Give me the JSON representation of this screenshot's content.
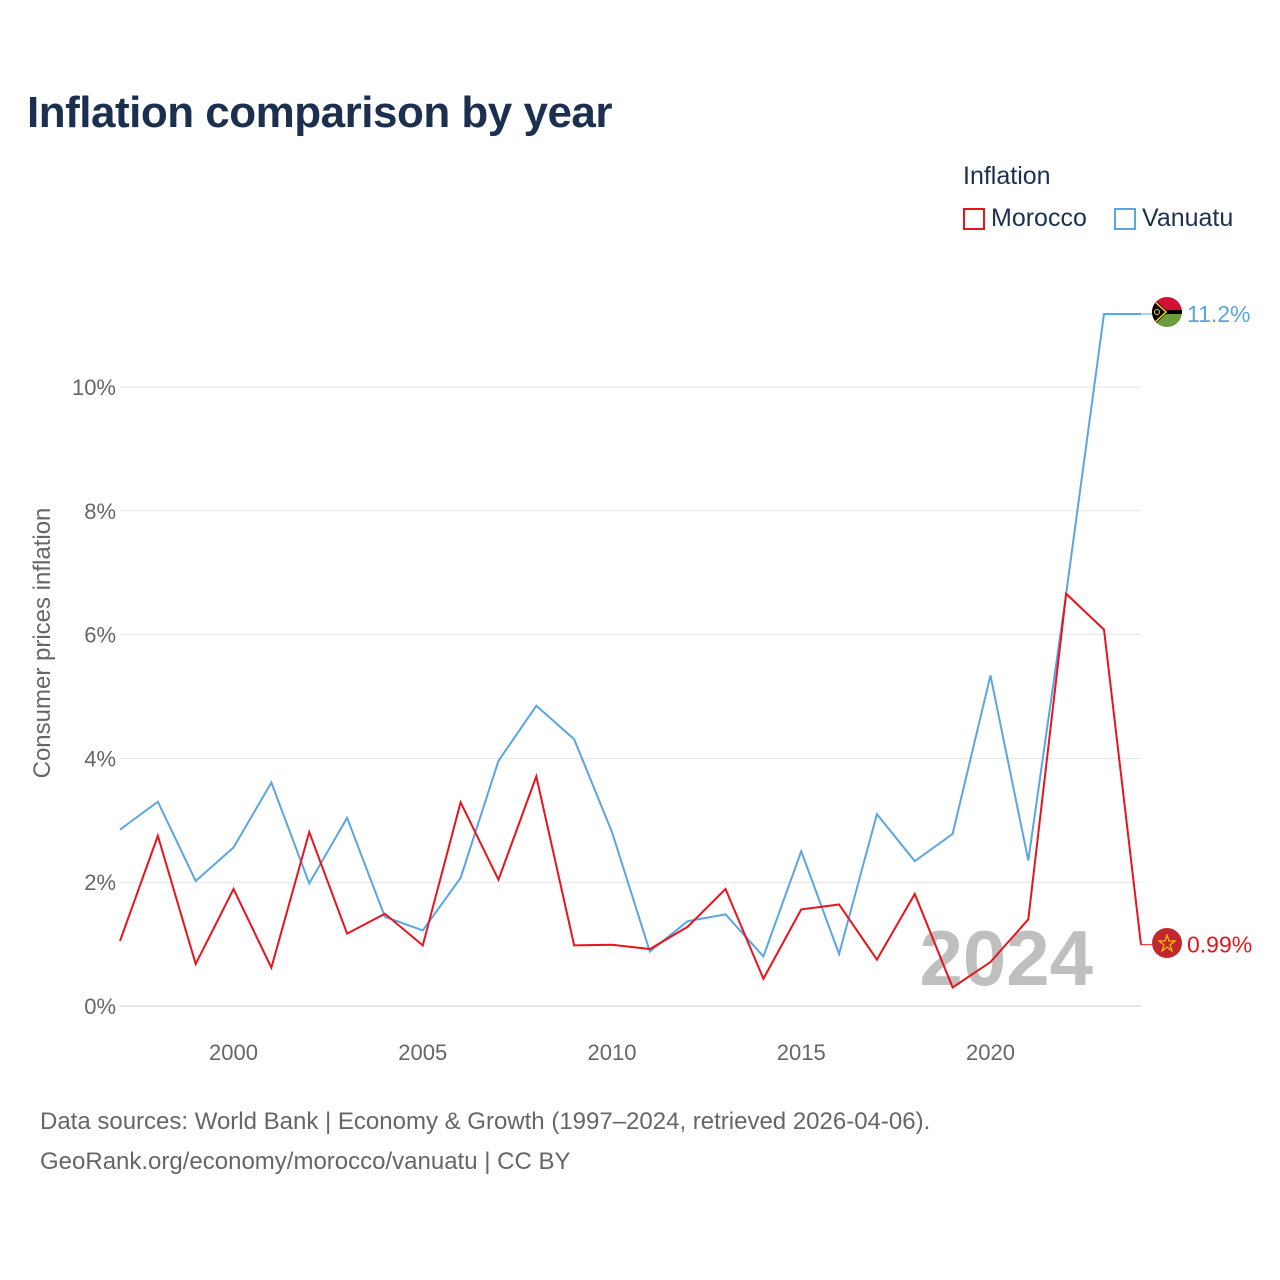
{
  "title": "Inflation comparison by year",
  "legend": {
    "title": "Inflation",
    "items": [
      {
        "name": "Morocco",
        "color": "#e8141c"
      },
      {
        "name": "Vanuatu",
        "color": "#5aa5e3"
      }
    ]
  },
  "footer": {
    "source": "Data sources: World Bank | Economy & Growth (1997–2024, retrieved 2026-04-06).",
    "credit": "GeoRank.org/economy/morocco/vanuatu | CC BY"
  },
  "chart_data": {
    "type": "line",
    "title": "Inflation comparison by year",
    "xlabel": "",
    "ylabel": "Consumer prices inflation",
    "xlim": [
      1997,
      2024
    ],
    "ylim": [
      0,
      12
    ],
    "grid": true,
    "x_ticks": [
      2000,
      2005,
      2010,
      2015,
      2020
    ],
    "y_ticks": [
      0,
      2,
      4,
      6,
      8,
      10
    ],
    "y_tick_labels": [
      "0%",
      "2%",
      "4%",
      "6%",
      "8%",
      "10%"
    ],
    "year_watermark": "2024",
    "x": [
      1997,
      1998,
      1999,
      2000,
      2001,
      2002,
      2003,
      2004,
      2005,
      2006,
      2007,
      2008,
      2009,
      2010,
      2011,
      2012,
      2013,
      2014,
      2015,
      2016,
      2017,
      2018,
      2019,
      2020,
      2021,
      2022,
      2023,
      2024
    ],
    "series": [
      {
        "name": "Vanuatu",
        "color": "#5aa5e3",
        "end_label": "11.2%",
        "values": [
          2.85,
          3.3,
          2.02,
          2.56,
          3.61,
          1.98,
          3.04,
          1.44,
          1.22,
          2.07,
          3.96,
          4.85,
          4.31,
          2.81,
          0.88,
          1.37,
          1.48,
          0.8,
          2.5,
          0.84,
          3.1,
          2.34,
          2.78,
          5.34,
          2.35,
          6.66,
          11.18,
          11.18
        ]
      },
      {
        "name": "Morocco",
        "color": "#e8141c",
        "end_label": "0.99%",
        "values": [
          1.05,
          2.75,
          0.68,
          1.89,
          0.62,
          2.81,
          1.17,
          1.49,
          0.98,
          3.29,
          2.04,
          3.71,
          0.98,
          0.99,
          0.92,
          1.28,
          1.89,
          0.44,
          1.56,
          1.64,
          0.75,
          1.81,
          0.3,
          0.71,
          1.4,
          6.66,
          6.08,
          0.99
        ]
      }
    ]
  }
}
